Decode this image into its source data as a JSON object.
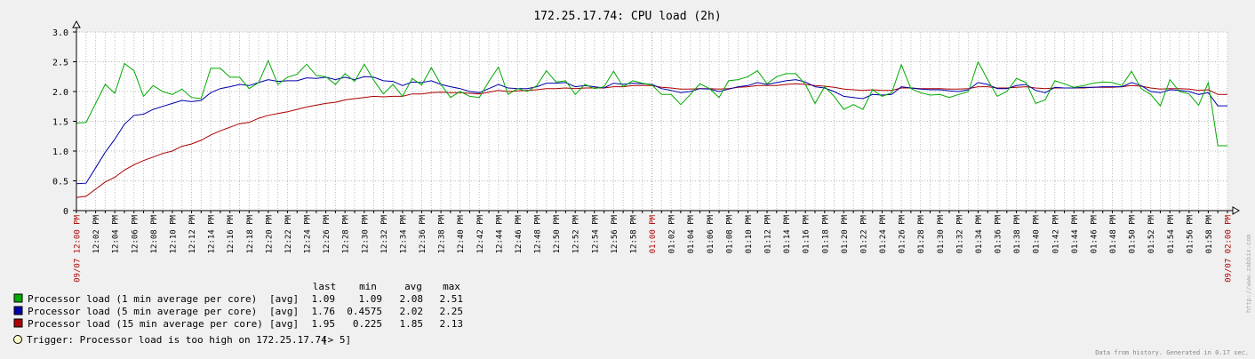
{
  "chart_data": {
    "type": "line",
    "title": "172.25.17.74: CPU load (2h)",
    "ylim": [
      0,
      3
    ],
    "y_ticks": [
      "3.0",
      "2.5",
      "2.0",
      "1.5",
      "1.0",
      "0.5",
      "0"
    ],
    "grid": true,
    "x_start_label": "09/07 12:00 PM",
    "x_end_label": "09/07 02:00 PM",
    "x_hour_label": "01:00 PM",
    "x_tick_labels": [
      "12:02 PM",
      "12:04 PM",
      "12:06 PM",
      "12:08 PM",
      "12:10 PM",
      "12:12 PM",
      "12:14 PM",
      "12:16 PM",
      "12:18 PM",
      "12:20 PM",
      "12:22 PM",
      "12:24 PM",
      "12:26 PM",
      "12:28 PM",
      "12:30 PM",
      "12:32 PM",
      "12:34 PM",
      "12:36 PM",
      "12:38 PM",
      "12:40 PM",
      "12:42 PM",
      "12:44 PM",
      "12:46 PM",
      "12:48 PM",
      "12:50 PM",
      "12:52 PM",
      "12:54 PM",
      "12:56 PM",
      "12:58 PM",
      "01:00 PM",
      "01:02 PM",
      "01:04 PM",
      "01:06 PM",
      "01:08 PM",
      "01:10 PM",
      "01:12 PM",
      "01:14 PM",
      "01:16 PM",
      "01:18 PM",
      "01:20 PM",
      "01:22 PM",
      "01:24 PM",
      "01:26 PM",
      "01:28 PM",
      "01:30 PM",
      "01:32 PM",
      "01:34 PM",
      "01:36 PM",
      "01:38 PM",
      "01:40 PM",
      "01:42 PM",
      "01:44 PM",
      "01:46 PM",
      "01:48 PM",
      "01:50 PM",
      "01:52 PM",
      "01:54 PM",
      "01:56 PM",
      "01:58 PM"
    ],
    "x_minutes": [
      0,
      1,
      2,
      3,
      4,
      5,
      6,
      7,
      8,
      9,
      10,
      11,
      12,
      13,
      14,
      15,
      16,
      17,
      18,
      19,
      20,
      21,
      22,
      23,
      24,
      25,
      26,
      27,
      28,
      29,
      30,
      31,
      32,
      33,
      34,
      35,
      36,
      37,
      38,
      39,
      40,
      41,
      42,
      43,
      44,
      45,
      46,
      47,
      48,
      49,
      50,
      51,
      52,
      53,
      54,
      55,
      56,
      57,
      58,
      59,
      60,
      61,
      62,
      63,
      64,
      65,
      66,
      67,
      68,
      69,
      70,
      71,
      72,
      73,
      74,
      75,
      76,
      77,
      78,
      79,
      80,
      81,
      82,
      83,
      84,
      85,
      86,
      87,
      88,
      89,
      90,
      91,
      92,
      93,
      94,
      95,
      96,
      97,
      98,
      99,
      100,
      101,
      102,
      103,
      104,
      105,
      106,
      107,
      108,
      109,
      110,
      111,
      112,
      113,
      114,
      115,
      116,
      117,
      118,
      119,
      120
    ],
    "series": [
      {
        "name": "Processor load (1 min average per core)",
        "color": "#00aa00",
        "values": [
          1.47,
          1.48,
          1.8,
          2.12,
          1.97,
          2.47,
          2.35,
          1.92,
          2.1,
          2.0,
          1.95,
          2.04,
          1.9,
          1.88,
          2.39,
          2.39,
          2.24,
          2.24,
          2.05,
          2.15,
          2.52,
          2.12,
          2.24,
          2.29,
          2.46,
          2.27,
          2.25,
          2.12,
          2.3,
          2.17,
          2.46,
          2.19,
          1.96,
          2.12,
          1.92,
          2.22,
          2.11,
          2.4,
          2.12,
          1.9,
          2.0,
          1.92,
          1.9,
          2.17,
          2.41,
          1.95,
          2.05,
          2.0,
          2.1,
          2.35,
          2.16,
          2.18,
          1.95,
          2.12,
          2.05,
          2.08,
          2.34,
          2.08,
          2.18,
          2.14,
          2.11,
          1.95,
          1.95,
          1.78,
          1.95,
          2.13,
          2.05,
          1.9,
          2.18,
          2.2,
          2.25,
          2.35,
          2.13,
          2.25,
          2.3,
          2.3,
          2.12,
          1.8,
          2.08,
          1.92,
          1.7,
          1.78,
          1.7,
          2.03,
          1.92,
          1.98,
          2.45,
          2.05,
          1.98,
          1.94,
          1.95,
          1.9,
          1.95,
          2.0,
          2.5,
          2.2,
          1.92,
          2.0,
          2.22,
          2.15,
          1.8,
          1.86,
          2.18,
          2.13,
          2.07,
          2.1,
          2.14,
          2.16,
          2.15,
          2.1,
          2.34,
          2.05,
          1.95,
          1.76,
          2.2,
          2.0,
          1.96,
          1.77,
          2.15,
          1.09,
          1.09
        ]
      },
      {
        "name": "Processor load (5 min average per core)",
        "color": "#0000aa",
        "values": [
          0.45,
          0.46,
          0.72,
          0.98,
          1.2,
          1.45,
          1.6,
          1.62,
          1.7,
          1.75,
          1.8,
          1.85,
          1.83,
          1.85,
          1.98,
          2.05,
          2.08,
          2.12,
          2.1,
          2.15,
          2.2,
          2.17,
          2.18,
          2.18,
          2.23,
          2.22,
          2.24,
          2.2,
          2.24,
          2.2,
          2.25,
          2.24,
          2.18,
          2.17,
          2.1,
          2.16,
          2.15,
          2.18,
          2.12,
          2.08,
          2.05,
          2.0,
          1.98,
          2.05,
          2.12,
          2.06,
          2.05,
          2.05,
          2.08,
          2.14,
          2.14,
          2.15,
          2.08,
          2.1,
          2.08,
          2.06,
          2.14,
          2.12,
          2.14,
          2.13,
          2.12,
          2.05,
          2.02,
          1.98,
          2.0,
          2.05,
          2.04,
          2.0,
          2.04,
          2.08,
          2.1,
          2.15,
          2.12,
          2.15,
          2.18,
          2.2,
          2.16,
          2.08,
          2.06,
          2.0,
          1.92,
          1.9,
          1.88,
          1.95,
          1.94,
          1.95,
          2.08,
          2.06,
          2.04,
          2.03,
          2.03,
          2.01,
          2.0,
          2.03,
          2.15,
          2.12,
          2.05,
          2.05,
          2.1,
          2.12,
          2.02,
          1.98,
          2.07,
          2.06,
          2.06,
          2.07,
          2.07,
          2.08,
          2.08,
          2.08,
          2.15,
          2.1,
          2.0,
          1.98,
          2.03,
          2.02,
          2.0,
          1.95,
          1.98,
          1.76,
          1.76
        ]
      },
      {
        "name": "Processor load (15 min average per core)",
        "color": "#aa0000",
        "values": [
          0.22,
          0.24,
          0.36,
          0.48,
          0.56,
          0.68,
          0.77,
          0.84,
          0.9,
          0.96,
          1.0,
          1.08,
          1.12,
          1.18,
          1.27,
          1.34,
          1.4,
          1.46,
          1.48,
          1.55,
          1.6,
          1.63,
          1.66,
          1.7,
          1.74,
          1.77,
          1.8,
          1.82,
          1.86,
          1.88,
          1.9,
          1.92,
          1.91,
          1.92,
          1.92,
          1.96,
          1.96,
          1.98,
          1.99,
          1.98,
          1.98,
          1.97,
          1.96,
          1.99,
          2.02,
          2.0,
          2.01,
          2.02,
          2.03,
          2.05,
          2.05,
          2.06,
          2.05,
          2.06,
          2.06,
          2.06,
          2.08,
          2.08,
          2.1,
          2.1,
          2.1,
          2.07,
          2.06,
          2.04,
          2.04,
          2.05,
          2.05,
          2.04,
          2.05,
          2.07,
          2.08,
          2.1,
          2.1,
          2.1,
          2.12,
          2.13,
          2.12,
          2.1,
          2.09,
          2.07,
          2.04,
          2.03,
          2.02,
          2.03,
          2.02,
          2.02,
          2.06,
          2.06,
          2.05,
          2.05,
          2.05,
          2.04,
          2.04,
          2.05,
          2.08,
          2.08,
          2.06,
          2.06,
          2.07,
          2.08,
          2.06,
          2.05,
          2.06,
          2.06,
          2.06,
          2.06,
          2.07,
          2.07,
          2.07,
          2.08,
          2.1,
          2.09,
          2.06,
          2.04,
          2.05,
          2.05,
          2.04,
          2.02,
          2.03,
          1.95,
          1.95
        ]
      }
    ],
    "legend_header": {
      "last": "last",
      "min": "min",
      "avg": "avg",
      "max": "max"
    },
    "legend": [
      {
        "label": "Processor load (1 min average per core)",
        "func": "[avg]",
        "last": "1.09",
        "min": "1.09",
        "avg": "2.08",
        "max": "2.51",
        "color": "#00aa00"
      },
      {
        "label": "Processor load (5 min average per core)",
        "func": "[avg]",
        "last": "1.76",
        "min": "0.4575",
        "avg": "2.02",
        "max": "2.25",
        "color": "#0000aa"
      },
      {
        "label": "Processor load (15 min average per core)",
        "func": "[avg]",
        "last": "1.95",
        "min": "0.225",
        "avg": "1.85",
        "max": "2.13",
        "color": "#aa0000"
      }
    ],
    "trigger": {
      "text": "Trigger: Processor load is too high on 172.25.17.74",
      "threshold": "[> 5]",
      "color": "#ffffcc"
    },
    "footer": "Data from history. Generated in 0.17 sec.",
    "watermark": "http://www.zabbix.com"
  }
}
